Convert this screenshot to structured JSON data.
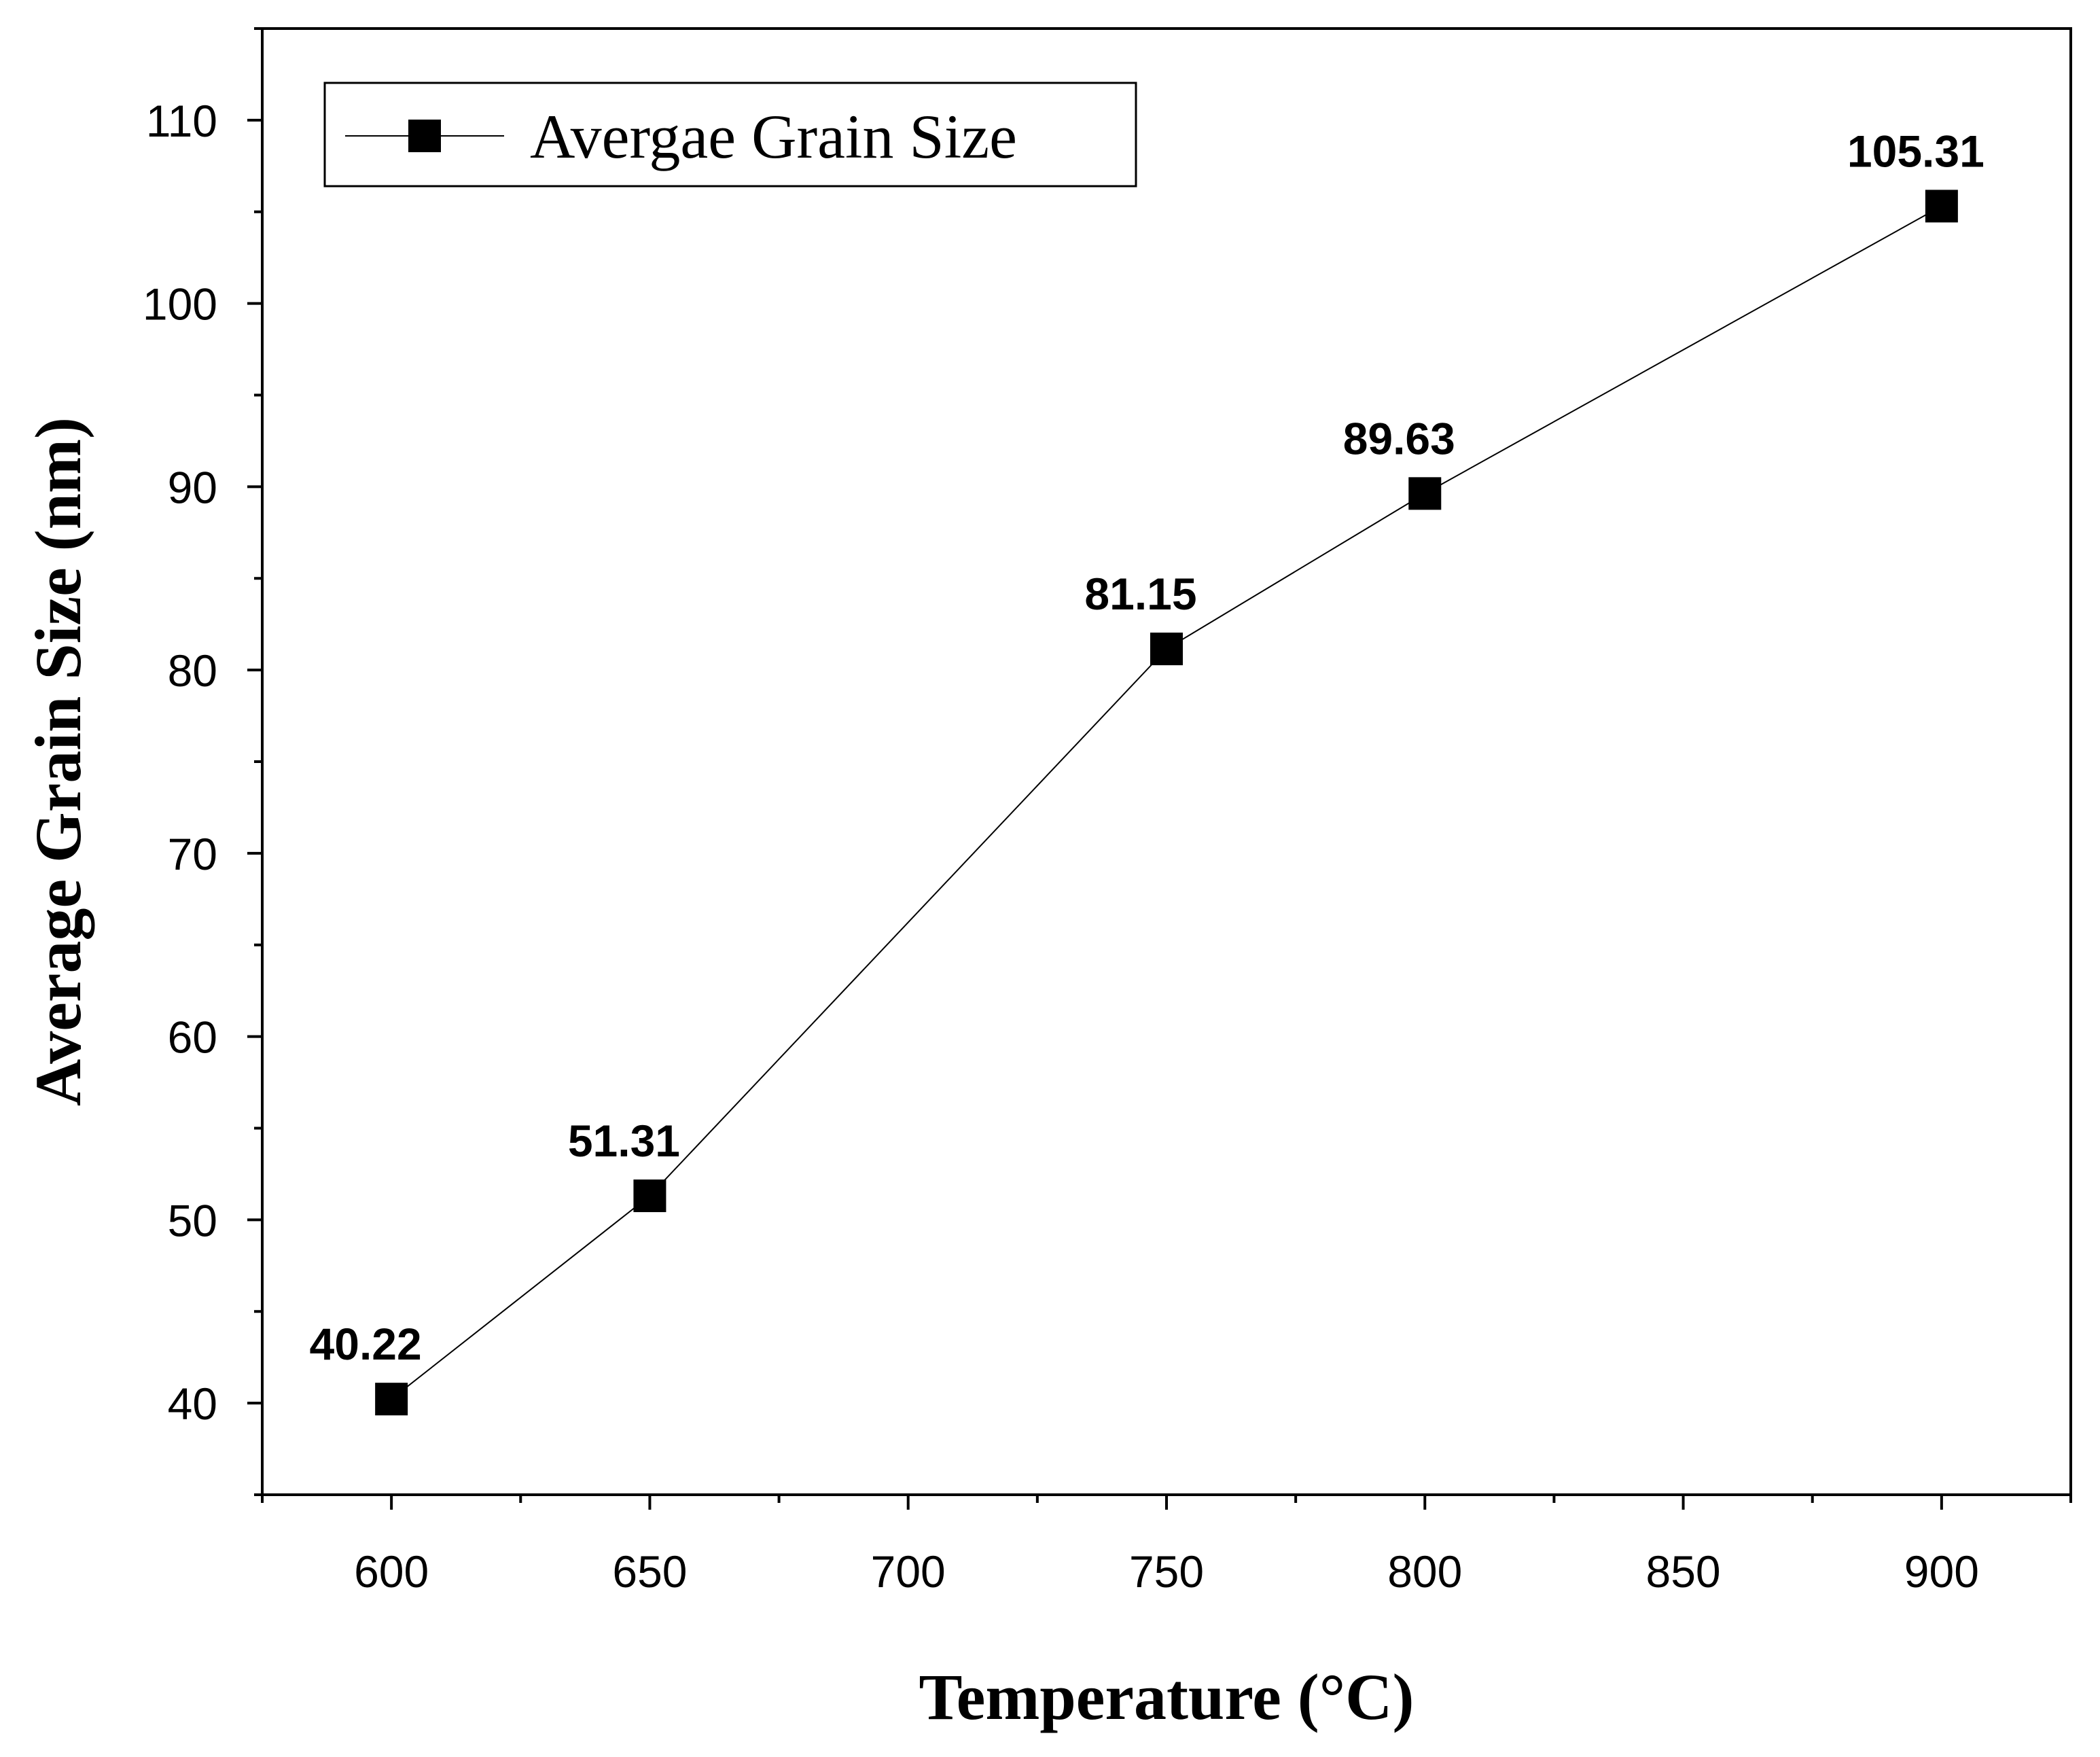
{
  "chart_data": {
    "type": "line",
    "title": "",
    "xlabel": "Temperature (°C)",
    "ylabel": "Average Grain Size (nm)",
    "xlim": [
      575,
      925
    ],
    "ylim": [
      35,
      115
    ],
    "xticks": [
      600,
      650,
      700,
      750,
      800,
      850,
      900
    ],
    "yticks": [
      40,
      50,
      60,
      70,
      80,
      90,
      100,
      110
    ],
    "grid": false,
    "legend_position": "top-left",
    "series": [
      {
        "name": "Avergae Grain Size",
        "marker": "square",
        "color": "#000000",
        "x": [
          600,
          650,
          750,
          800,
          900
        ],
        "y": [
          40.22,
          51.31,
          81.15,
          89.63,
          105.31
        ],
        "labels": [
          "40.22",
          "51.31",
          "81.15",
          "89.63",
          "105.31"
        ]
      }
    ]
  }
}
